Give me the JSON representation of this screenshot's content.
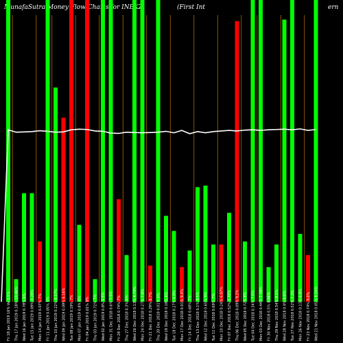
{
  "header": {
    "title_left": "MunafaSutra  Money Flow  Charts for INBKZ",
    "title_mid": "(First Int",
    "title_right": "ern"
  },
  "chart_data": {
    "type": "bar",
    "title": "MunafaSutra  Money Flow  Charts for INBKZ (First Int ern",
    "colors": {
      "up": "#00ff00",
      "down": "#ff0000",
      "line": "#ffffff",
      "grid": "#b36b00"
    },
    "ylim": [
      0,
      100
    ],
    "categories": [
      "Fri 18 Jan 2019 16% Ve 3.5%",
      "Thu 17 Jan 2019 0.18% 10.46%",
      "Wed 16 Jan 2019 0.78% 6%",
      "Tue 15 Jan 2019 0.09% 6.28%",
      "Mon 14 Jan 2019 0.07% 7%",
      "Fri 11 Jan 2019 0.05% 5%",
      "Thu 10 Jan 2019 0.22% 8.17%",
      "Wed 09 Jan 2019 0.09% 6.16%",
      "Tue 08 Jan 2019 0.19% 7%",
      "Mon 07 Jan 2019 0.8% 6%",
      "Fri 04 Jan 2019 0.01% 9%",
      "Thu 03 Jan 2019 0.72% 7%",
      "Wed 02 Jan 2019 0.8% 6.5%",
      "Mon 31 Dec 2018 0.6% 5.5%",
      "Fri 28 Dec 2018 0.74% 7%",
      "Thu 27 Dec 2018 0.3% 6%",
      "Wed 26 Dec 2018 0.13% 4.79%",
      "Mon 24 Dec 2018 0.27% 7.8%",
      "Fri 21 Dec 2018 0.29% 8.7%",
      "Thu 20 Dec 2018 0.01% 5%",
      "Wed 19 Dec 2018 0.18% 6%",
      "Tue 18 Dec 2018 0.27% 6.9%",
      "Mon 17 Dec 2018 0.01% 9.4%",
      "Fri 14 Dec 2018 0.68% 7%",
      "Thu 13 Dec 2018 0.1% 8.5%",
      "Wed 12 Dec 2018 0.65% 9%",
      "Tue 11 Dec 2018 0.69% 7%",
      "Mon 10 Dec 2018 0.24% 6.97%",
      "Fri 07 Dec 2018 0.52% 6.45%",
      "Thu 06 Dec 2018 0.09% 9.2%",
      "Wed 05 Dec 2018 0.72% 8%",
      "Tue 04 Dec 2018 0.34% 7.5%",
      "Mon 03 Dec 2018 0.44% 7.38%",
      "Fri 30 Nov 2018 0.5% 8.66%",
      "Thu 29 Nov 2018 0.54% 8.1%",
      "Wed 28 Nov 2018 0.4% 6.6%",
      "Tue 27 Nov 2018 0.52% 7.3%",
      "Mon 26 Nov 2018 0.13% 6.8%",
      "Fri 23 Nov 2018 0.74% 9.0%",
      "Wed 21 Nov 2018 0.05% 8.54%"
    ],
    "colors_per_bar": [
      "up",
      "up",
      "up",
      "up",
      "down",
      "up",
      "up",
      "down",
      "down",
      "up",
      "down",
      "up",
      "up",
      "up",
      "down",
      "up",
      "up",
      "up",
      "down",
      "up",
      "up",
      "up",
      "down",
      "up",
      "up",
      "up",
      "up",
      "down",
      "up",
      "down",
      "up",
      "up",
      "up",
      "up",
      "up",
      "up",
      "up",
      "up",
      "down",
      "up"
    ],
    "values": [
      100,
      7.5,
      36,
      36,
      20,
      100,
      71,
      61,
      100,
      25.5,
      100,
      7.5,
      100,
      100,
      34,
      15.5,
      100,
      100,
      12,
      100,
      28.5,
      23.5,
      11.5,
      17,
      38,
      38.5,
      19,
      19,
      29.5,
      93,
      20,
      100,
      100,
      11.5,
      19,
      93.5,
      100,
      22.5,
      15.5,
      100
    ],
    "orange_grid_after": [
      0,
      3,
      5,
      8,
      11,
      14,
      17,
      20,
      23,
      26,
      29,
      31,
      34,
      37
    ],
    "line_values": [
      57,
      56.2,
      56.3,
      56.4,
      56.7,
      56.5,
      56.2,
      56.3,
      57.0,
      57.2,
      57.1,
      56.6,
      56.5,
      55.9,
      55.8,
      56.2,
      56.1,
      56.0,
      56.1,
      56.2,
      56.5,
      56.0,
      56.8,
      55.7,
      56.4,
      56.0,
      56.4,
      56.6,
      56.8,
      56.6,
      56.9,
      57.0,
      56.8,
      57.0,
      57.1,
      57.2,
      57.0,
      57.3,
      56.8,
      57.1
    ],
    "line_start_value": 0
  }
}
